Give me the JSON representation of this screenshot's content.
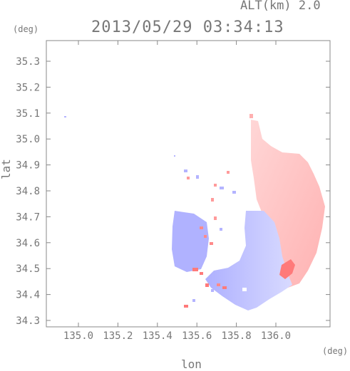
{
  "header": {
    "altitude_label": "ALT(km) 2.0",
    "timestamp": "2013/05/29 03:34:13"
  },
  "axes": {
    "y_unit": "(deg)",
    "x_unit": "(deg)",
    "y_title": "lat",
    "x_title": "lon",
    "x_ticks": [
      "135.0",
      "135.2",
      "135.4",
      "135.6",
      "135.8",
      "136.0"
    ],
    "y_ticks": [
      "35.3",
      "35.2",
      "35.1",
      "35.0",
      "34.9",
      "34.8",
      "34.7",
      "34.6",
      "34.5",
      "34.4",
      "34.3"
    ]
  },
  "colors": {
    "frame": "#888888",
    "approaching": "#b4b4ff",
    "receding": "#ffbcbc",
    "strong_receding": "#ff7a7a"
  }
}
